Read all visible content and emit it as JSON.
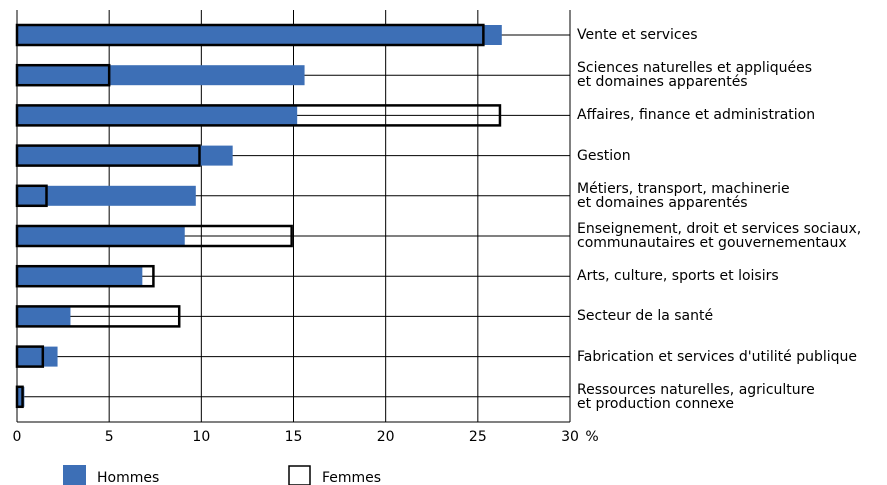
{
  "chart_data": {
    "type": "bar",
    "orientation": "horizontal",
    "categories": [
      "Vente et services",
      "Sciences naturelles et appliquées\net domaines apparentés",
      "Affaires, finance et administration",
      "Gestion",
      "Métiers, transport, machinerie\net domaines apparentés",
      "Enseignement, droit et services sociaux,\ncommunautaires et gouvernementaux",
      "Arts, culture, sports et loisirs",
      "Secteur de la santé",
      "Fabrication et services d'utilité publique",
      "Ressources naturelles, agriculture\net production connexe"
    ],
    "series": [
      {
        "name": "Hommes",
        "color": "#3d6fb6",
        "style": "filled",
        "values": [
          26.3,
          15.6,
          15.2,
          11.7,
          9.7,
          9.1,
          6.8,
          2.9,
          2.2,
          0.4
        ]
      },
      {
        "name": "Femmes",
        "color": "#000000",
        "style": "outline",
        "values": [
          25.3,
          5.0,
          26.2,
          9.9,
          1.6,
          14.9,
          7.4,
          8.8,
          1.4,
          0.3
        ]
      }
    ],
    "xlim": [
      0,
      30
    ],
    "xticks": [
      0,
      5,
      10,
      15,
      20,
      25,
      30
    ],
    "xlabel": "%",
    "grid": true,
    "legend": "bottom"
  }
}
